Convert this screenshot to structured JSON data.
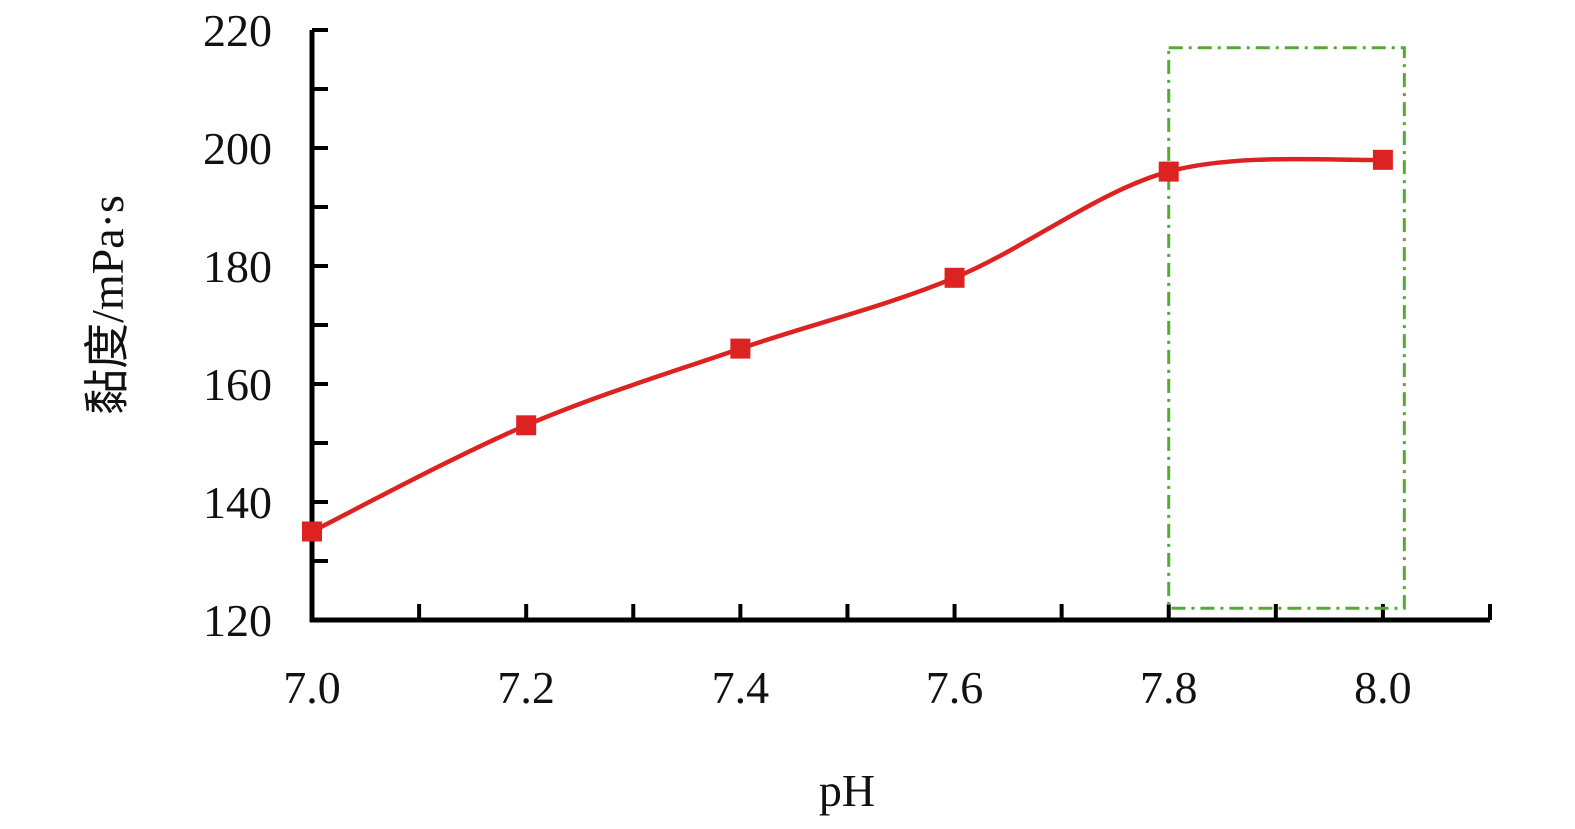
{
  "chart_data": {
    "type": "line",
    "xlabel": "pH",
    "ylabel": "黏度/mPa·s",
    "xlim": [
      7.0,
      8.1
    ],
    "ylim": [
      120,
      220
    ],
    "x_ticks": [
      "7.0",
      "7.2",
      "7.4",
      "7.6",
      "7.8",
      "8.0"
    ],
    "y_ticks": [
      "120",
      "140",
      "160",
      "180",
      "200",
      "220"
    ],
    "series": [
      {
        "x": [
          7.0,
          7.2,
          7.4,
          7.6,
          7.8,
          8.0
        ],
        "values": [
          135,
          153,
          166,
          178,
          196,
          198
        ],
        "color": "#dd2222",
        "marker": "square",
        "smooth": true
      }
    ],
    "highlight_box": {
      "x_range": [
        7.8,
        8.02
      ],
      "y_range": [
        122,
        217
      ],
      "color": "#55aa33",
      "style": "dash-dot"
    },
    "grid": false,
    "legend": "none"
  }
}
